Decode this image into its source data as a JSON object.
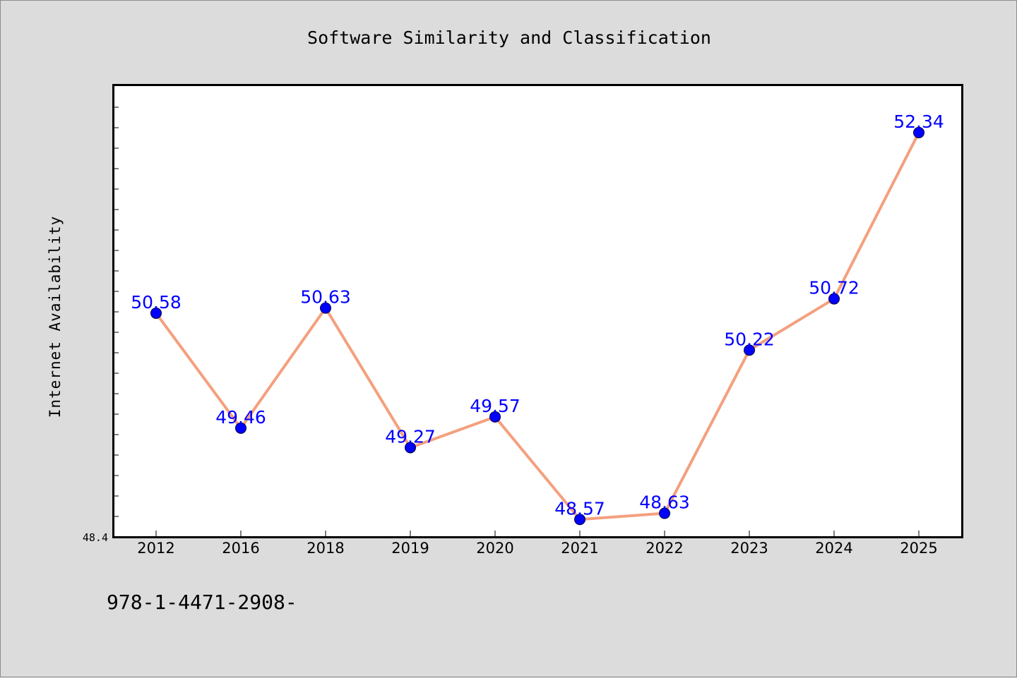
{
  "chart_data": {
    "type": "line",
    "title": "Software Similarity and Classification",
    "xlabel": "",
    "ylabel": "Internet Availability",
    "categories": [
      "2012",
      "2016",
      "2018",
      "2019",
      "2020",
      "2021",
      "2022",
      "2023",
      "2024",
      "2025"
    ],
    "series": [
      {
        "values": [
          50.58,
          49.46,
          50.63,
          49.27,
          49.57,
          48.57,
          48.63,
          50.22,
          50.72,
          52.34
        ],
        "labels": [
          "50.58",
          "49.46",
          "50.63",
          "49.27",
          "49.57",
          "48.57",
          "48.63",
          "50.22",
          "50.72",
          "52.34"
        ],
        "line_color": "#f4a07e",
        "marker_color": "#0000ff"
      }
    ],
    "y_tick_labels": [
      "48.4"
    ],
    "ylim": [
      48.4,
      52.8
    ],
    "grid": false,
    "plot_background": "#ffffff",
    "figure_background": "#dcdcdc"
  },
  "footer_text": "978-1-4471-2908-"
}
